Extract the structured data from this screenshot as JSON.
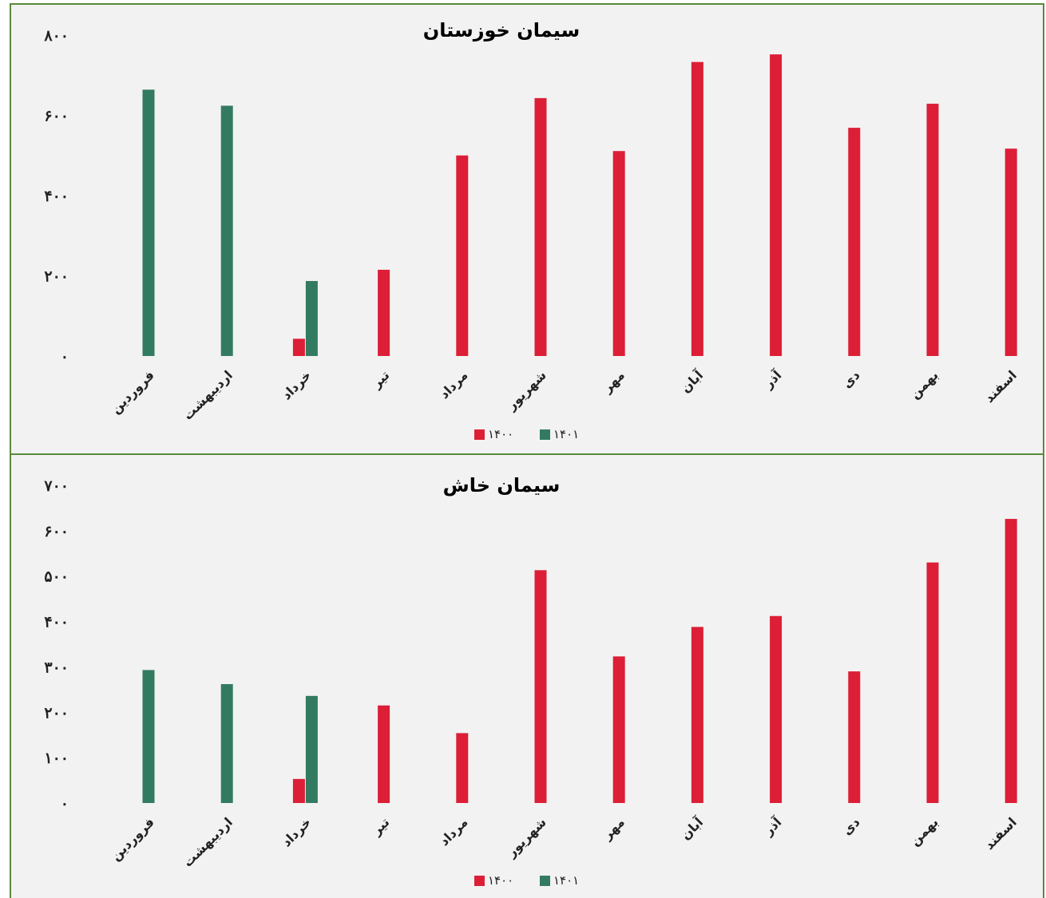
{
  "colors": {
    "series_1400": "#dc1f36",
    "series_1401": "#337b60",
    "border": "#5a8a3a",
    "background": "#f2f2f2"
  },
  "chart_data": [
    {
      "type": "bar",
      "title": "سیمان خوزستان",
      "categories": [
        "فروردین",
        "اردیبهشت",
        "خرداد",
        "تیر",
        "مرداد",
        "شهریور",
        "مهر",
        "آبان",
        "آذر",
        "دی",
        "بهمن",
        "اسفند"
      ],
      "series": [
        {
          "name": "۱۴۰۰",
          "color": "#dc1f36",
          "values": [
            null,
            null,
            43,
            215,
            500,
            643,
            511,
            733,
            752,
            569,
            629,
            517
          ]
        },
        {
          "name": "۱۴۰۱",
          "color": "#337b60",
          "values": [
            664,
            624,
            187,
            null,
            null,
            null,
            null,
            null,
            null,
            null,
            null,
            null
          ]
        }
      ],
      "yticks": [
        0,
        200,
        400,
        600,
        800
      ],
      "ytick_labels": [
        "۰",
        "۲۰۰",
        "۴۰۰",
        "۶۰۰",
        "۸۰۰"
      ],
      "ylim": [
        0,
        800
      ],
      "legend": "bottom-center",
      "grid": false
    },
    {
      "type": "bar",
      "title": "سیمان خاش",
      "categories": [
        "فروردین",
        "اردیبهشت",
        "خرداد",
        "تیر",
        "مرداد",
        "شهریور",
        "مهر",
        "آبان",
        "آذر",
        "دی",
        "بهمن",
        "اسفند"
      ],
      "series": [
        {
          "name": "۱۴۰۰",
          "color": "#dc1f36",
          "values": [
            null,
            null,
            53,
            215,
            154,
            513,
            323,
            388,
            412,
            290,
            530,
            626
          ]
        },
        {
          "name": "۱۴۰۱",
          "color": "#337b60",
          "values": [
            293,
            262,
            236,
            null,
            null,
            null,
            null,
            null,
            null,
            null,
            null,
            null
          ]
        }
      ],
      "yticks": [
        0,
        100,
        200,
        300,
        400,
        500,
        600,
        700
      ],
      "ytick_labels": [
        "۰",
        "۱۰۰",
        "۲۰۰",
        "۳۰۰",
        "۴۰۰",
        "۵۰۰",
        "۶۰۰",
        "۷۰۰"
      ],
      "ylim": [
        0,
        700
      ],
      "legend": "bottom-center",
      "grid": false
    }
  ]
}
